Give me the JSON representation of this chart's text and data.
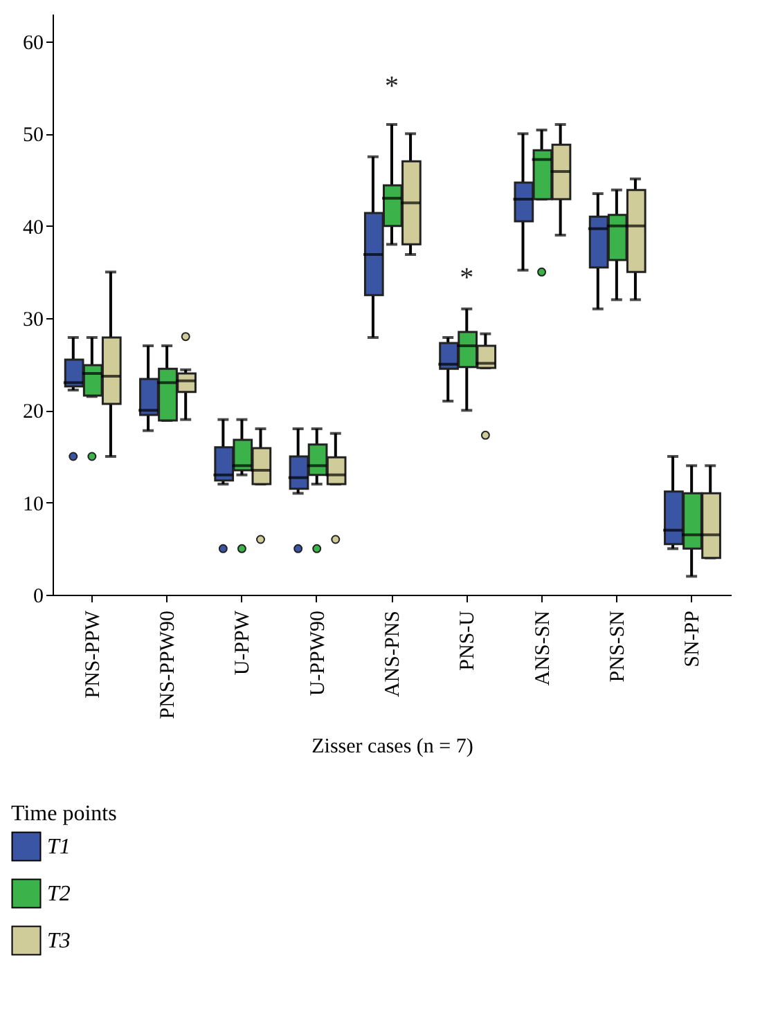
{
  "chart_data": {
    "type": "box",
    "xlabel": "Zisser cases (n = 7)",
    "legend_title": "Time points",
    "legend": "bottom left",
    "grid": false,
    "categories": [
      "PNS-PPW",
      "PNS-PPW90",
      "U-PPW",
      "U-PPW90",
      "ANS-PNS",
      "PNS-U",
      "ANS-SN",
      "PNS-SN",
      "SN-PP"
    ],
    "ylim": [
      0,
      63
    ],
    "yticks": [
      0,
      10,
      20,
      30,
      40,
      50,
      60
    ],
    "annotations": [
      "*",
      "*"
    ],
    "series": [
      {
        "name": "T1",
        "color": "#3a55a4",
        "boxes": [
          {
            "low": 22.2,
            "q1": 22.6,
            "median": 23,
            "q3": 25.5,
            "high": 27.9,
            "outliers": [
              15
            ]
          },
          {
            "low": 17.8,
            "q1": 19.5,
            "median": 20,
            "q3": 23.4,
            "high": 27
          },
          {
            "low": 12,
            "q1": 12.4,
            "median": 13,
            "q3": 16,
            "high": 19,
            "outliers": [
              5
            ]
          },
          {
            "low": 11,
            "q1": 11.5,
            "median": 12.7,
            "q3": 15,
            "high": 18,
            "outliers": [
              5
            ]
          },
          {
            "low": 27.9,
            "q1": 32.5,
            "median": 36.9,
            "q3": 41.4,
            "high": 47.5
          },
          {
            "low": 21,
            "q1": 24.5,
            "median": 25,
            "q3": 27.3,
            "high": 27.9
          },
          {
            "low": 35.2,
            "q1": 40.5,
            "median": 42.9,
            "q3": 44.7,
            "high": 50
          },
          {
            "low": 31,
            "q1": 35.5,
            "median": 39.7,
            "q3": 41,
            "high": 43.5
          },
          {
            "low": 5,
            "q1": 5.5,
            "median": 7,
            "q3": 11.2,
            "high": 15
          }
        ]
      },
      {
        "name": "T2",
        "color": "#3bb34a",
        "boxes": [
          {
            "low": 21.5,
            "q1": 21.6,
            "median": 24,
            "q3": 24.9,
            "high": 27.9,
            "outliers": [
              15
            ]
          },
          {
            "low": 18.9,
            "q1": 18.9,
            "median": 23,
            "q3": 24.5,
            "high": 27
          },
          {
            "low": 13,
            "q1": 13.5,
            "median": 14,
            "q3": 16.8,
            "high": 19,
            "outliers": [
              5
            ]
          },
          {
            "low": 12,
            "q1": 13,
            "median": 14,
            "q3": 16.3,
            "high": 18,
            "outliers": [
              5
            ]
          },
          {
            "low": 38,
            "q1": 40,
            "median": 43,
            "q3": 44.4,
            "high": 51
          },
          {
            "low": 20,
            "q1": 24.7,
            "median": 27,
            "q3": 28.5,
            "high": 31
          },
          {
            "low": 42.9,
            "q1": 42.9,
            "median": 47.2,
            "q3": 48.2,
            "high": 50.4,
            "outliers": [
              35
            ]
          },
          {
            "low": 32,
            "q1": 36.3,
            "median": 40,
            "q3": 41.2,
            "high": 43.9
          },
          {
            "low": 2,
            "q1": 5,
            "median": 6.5,
            "q3": 11,
            "high": 14
          }
        ]
      },
      {
        "name": "T3",
        "color": "#d0cc99",
        "boxes": [
          {
            "low": 15,
            "q1": 20.7,
            "median": 23.7,
            "q3": 27.9,
            "high": 35
          },
          {
            "low": 19,
            "q1": 22,
            "median": 23.2,
            "q3": 24,
            "high": 24.4,
            "outliers": [
              28
            ]
          },
          {
            "low": 12,
            "q1": 12,
            "median": 13.5,
            "q3": 15.9,
            "high": 18,
            "outliers": [
              6
            ]
          },
          {
            "low": 12,
            "q1": 12,
            "median": 13,
            "q3": 14.9,
            "high": 17.5,
            "outliers": [
              6
            ]
          },
          {
            "low": 36.9,
            "q1": 38,
            "median": 42.5,
            "q3": 47,
            "high": 50
          },
          {
            "low": 24.6,
            "q1": 24.6,
            "median": 25.1,
            "q3": 27,
            "high": 28.3,
            "outliers": [
              17.3
            ]
          },
          {
            "low": 39,
            "q1": 42.9,
            "median": 45.9,
            "q3": 48.8,
            "high": 51
          },
          {
            "low": 32,
            "q1": 35,
            "median": 40,
            "q3": 43.9,
            "high": 45.1
          },
          {
            "low": 4,
            "q1": 4,
            "median": 6.5,
            "q3": 11,
            "high": 14
          }
        ]
      }
    ]
  }
}
